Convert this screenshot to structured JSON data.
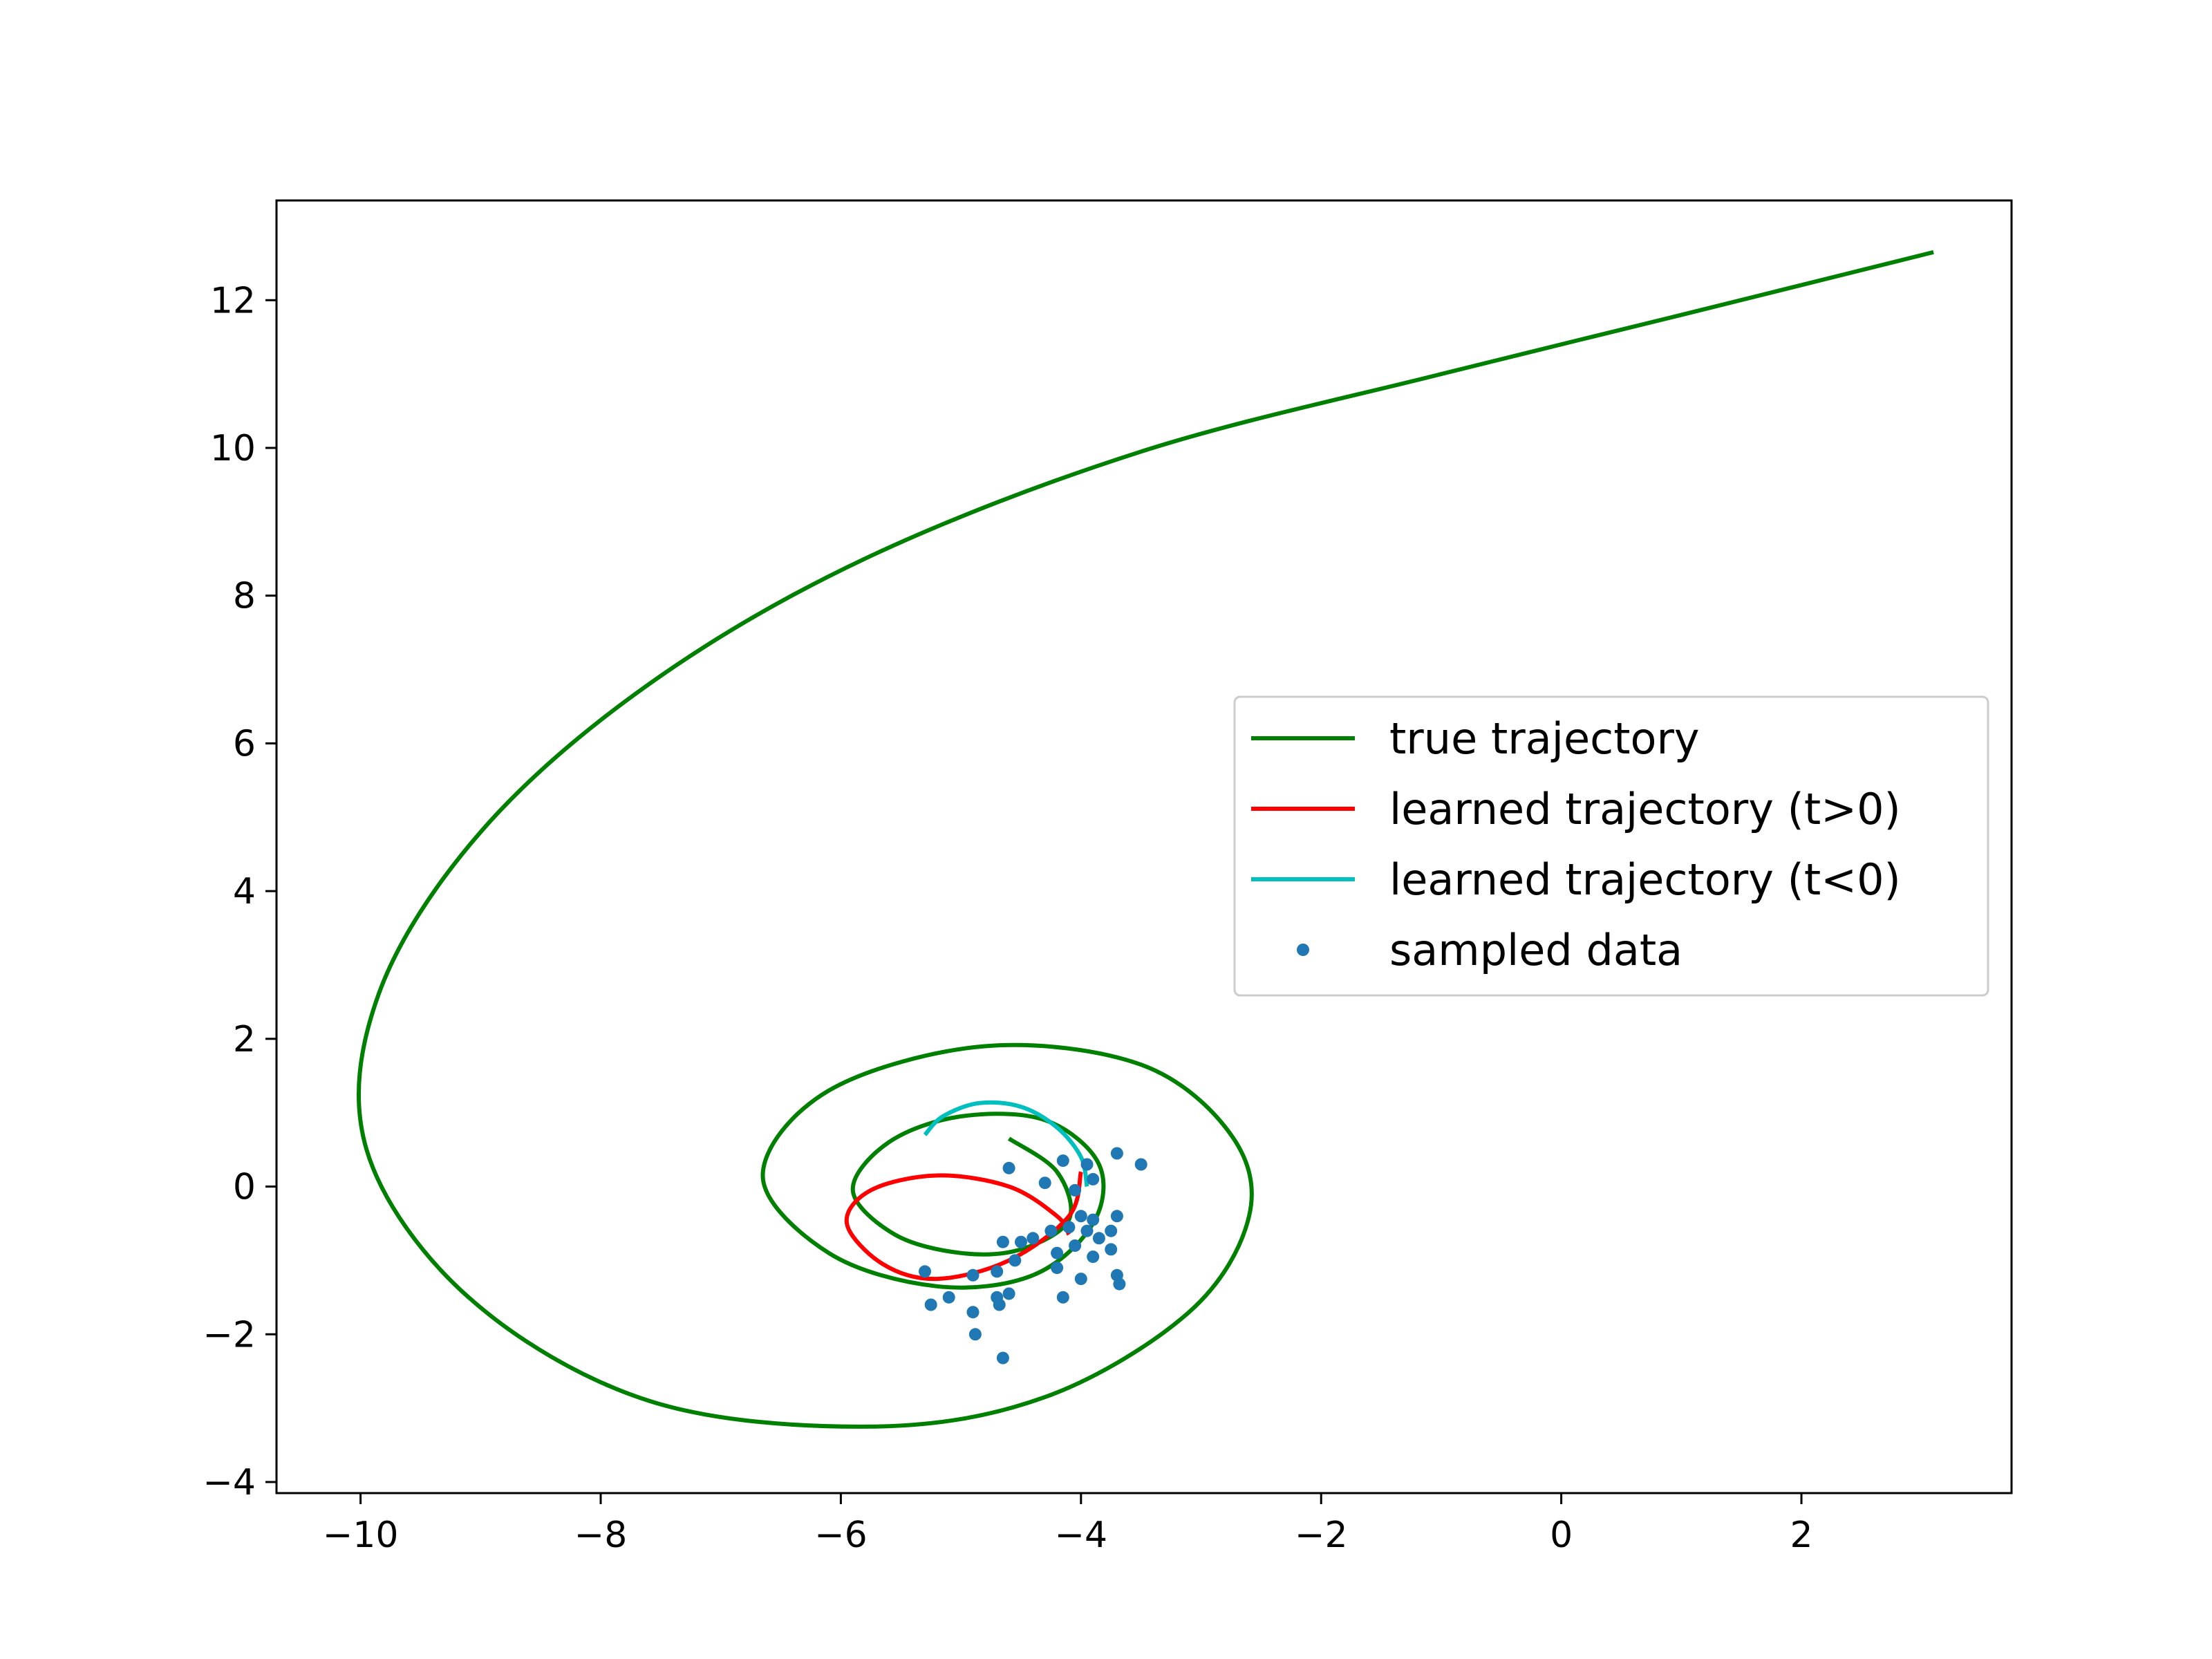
{
  "chart_data": {
    "type": "line",
    "title": "",
    "xlabel": "",
    "ylabel": "",
    "xlim": [
      -10.7,
      3.75
    ],
    "ylim": [
      -4.15,
      13.35
    ],
    "xticks": [
      -10,
      -8,
      -6,
      -4,
      -2,
      0,
      2
    ],
    "yticks": [
      -4,
      -2,
      0,
      2,
      4,
      6,
      8,
      10,
      12
    ],
    "xtick_labels": [
      "−10",
      "−8",
      "−6",
      "−4",
      "−2",
      "0",
      "2"
    ],
    "ytick_labels": [
      "−4",
      "−2",
      "0",
      "2",
      "4",
      "6",
      "8",
      "10",
      "12"
    ],
    "grid": false,
    "legend_position": "center-right",
    "series": [
      {
        "name": "true trajectory",
        "kind": "line",
        "color": "#008000",
        "points": [
          [
            -4.6,
            0.65
          ],
          [
            -4.2,
            0.2
          ],
          [
            -4.1,
            -0.45
          ],
          [
            -4.5,
            -0.85
          ],
          [
            -5.0,
            -0.9
          ],
          [
            -5.55,
            -0.65
          ],
          [
            -5.9,
            -0.05
          ],
          [
            -5.6,
            0.6
          ],
          [
            -5.0,
            0.95
          ],
          [
            -4.3,
            0.9
          ],
          [
            -3.85,
            0.3
          ],
          [
            -3.9,
            -0.5
          ],
          [
            -4.4,
            -1.2
          ],
          [
            -5.2,
            -1.35
          ],
          [
            -6.1,
            -0.9
          ],
          [
            -6.65,
            0.15
          ],
          [
            -6.1,
            1.3
          ],
          [
            -4.8,
            1.9
          ],
          [
            -3.5,
            1.65
          ],
          [
            -2.75,
            0.7
          ],
          [
            -2.6,
            -0.4
          ],
          [
            -3.1,
            -1.7
          ],
          [
            -4.3,
            -2.85
          ],
          [
            -5.75,
            -3.25
          ],
          [
            -7.6,
            -2.9
          ],
          [
            -9.1,
            -1.5
          ],
          [
            -9.95,
            0.5
          ],
          [
            -9.85,
            2.6
          ],
          [
            -9.0,
            4.8
          ],
          [
            -7.6,
            6.8
          ],
          [
            -5.8,
            8.5
          ],
          [
            -3.5,
            9.95
          ],
          [
            -1.0,
            11.0
          ],
          [
            1.0,
            11.8
          ],
          [
            3.1,
            12.65
          ]
        ]
      },
      {
        "name": "learned trajectory (t>0)",
        "kind": "line",
        "color": "#ff0000",
        "points": [
          [
            -4.0,
            0.2
          ],
          [
            -4.1,
            -0.4
          ],
          [
            -4.6,
            -1.0
          ],
          [
            -5.2,
            -1.25
          ],
          [
            -5.65,
            -1.05
          ],
          [
            -5.95,
            -0.5
          ],
          [
            -5.75,
            -0.05
          ],
          [
            -5.2,
            0.15
          ],
          [
            -4.6,
            0.0
          ],
          [
            -4.2,
            -0.4
          ],
          [
            -4.1,
            -0.65
          ]
        ]
      },
      {
        "name": "learned trajectory (t<0)",
        "kind": "line",
        "color": "#00bfbf",
        "points": [
          [
            -5.3,
            0.7
          ],
          [
            -5.15,
            0.95
          ],
          [
            -4.85,
            1.13
          ],
          [
            -4.5,
            1.08
          ],
          [
            -4.2,
            0.8
          ],
          [
            -4.0,
            0.4
          ],
          [
            -3.95,
            0.0
          ]
        ]
      },
      {
        "name": "sampled data",
        "kind": "scatter",
        "color": "#1f77b4",
        "points": [
          [
            -4.6,
            0.25
          ],
          [
            -4.3,
            0.05
          ],
          [
            -4.15,
            0.35
          ],
          [
            -4.05,
            -0.05
          ],
          [
            -3.95,
            0.3
          ],
          [
            -3.9,
            0.1
          ],
          [
            -3.7,
            0.45
          ],
          [
            -3.5,
            0.3
          ],
          [
            -4.0,
            -0.4
          ],
          [
            -3.9,
            -0.45
          ],
          [
            -3.95,
            -0.6
          ],
          [
            -4.1,
            -0.55
          ],
          [
            -4.25,
            -0.6
          ],
          [
            -4.4,
            -0.7
          ],
          [
            -4.5,
            -0.75
          ],
          [
            -4.65,
            -0.75
          ],
          [
            -3.85,
            -0.7
          ],
          [
            -3.75,
            -0.6
          ],
          [
            -3.7,
            -0.4
          ],
          [
            -3.9,
            -0.95
          ],
          [
            -4.05,
            -0.8
          ],
          [
            -4.2,
            -0.9
          ],
          [
            -4.55,
            -1.0
          ],
          [
            -4.7,
            -1.15
          ],
          [
            -4.9,
            -1.2
          ],
          [
            -5.3,
            -1.15
          ],
          [
            -4.2,
            -1.1
          ],
          [
            -4.0,
            -1.25
          ],
          [
            -3.75,
            -0.85
          ],
          [
            -3.7,
            -1.2
          ],
          [
            -3.68,
            -1.32
          ],
          [
            -4.6,
            -1.45
          ],
          [
            -4.7,
            -1.5
          ],
          [
            -4.15,
            -1.5
          ],
          [
            -5.1,
            -1.5
          ],
          [
            -5.25,
            -1.6
          ],
          [
            -4.9,
            -1.7
          ],
          [
            -4.68,
            -1.6
          ],
          [
            -4.88,
            -2.0
          ],
          [
            -4.65,
            -2.32
          ]
        ]
      }
    ]
  }
}
